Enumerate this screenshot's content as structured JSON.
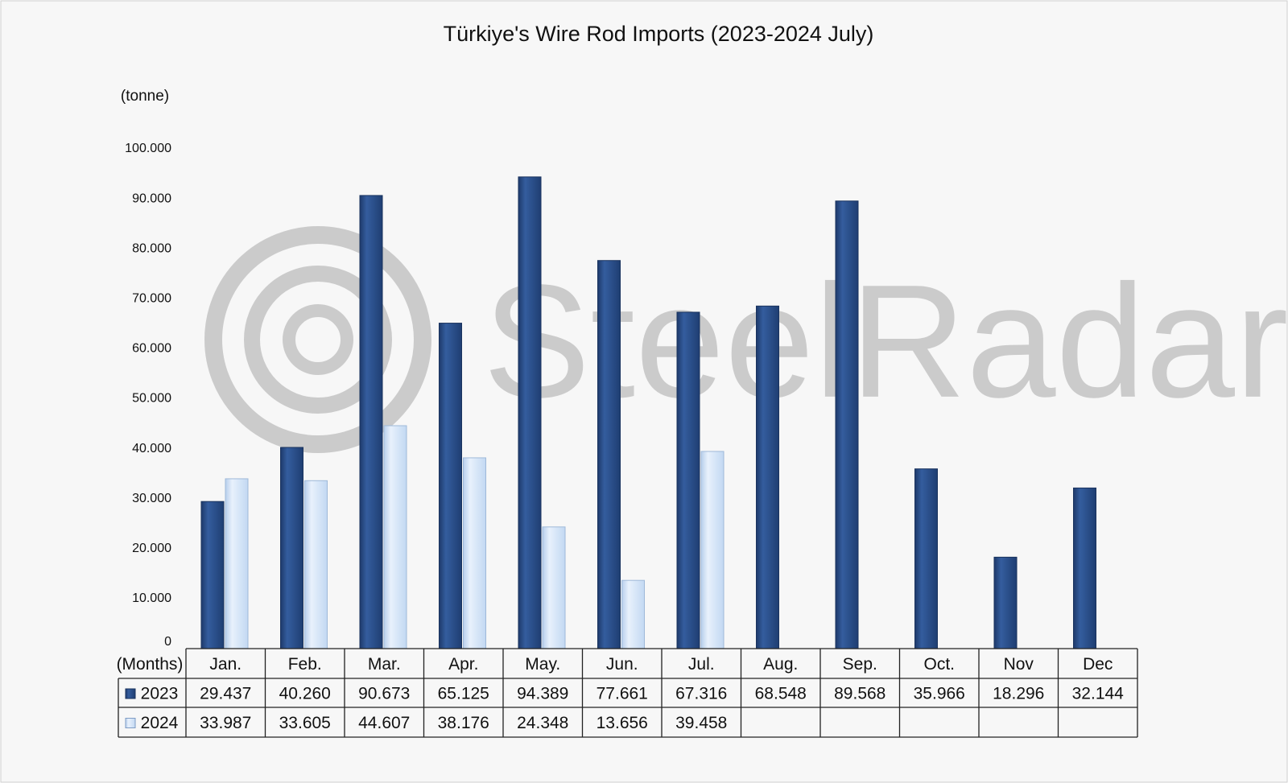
{
  "chart_data": {
    "type": "bar",
    "title": "Türkiye's Wire Rod Imports (2023-2024 July)",
    "y_label": "(tonne)",
    "x_label": "(Months)",
    "watermark": "SteelRadar",
    "categories": [
      "Jan.",
      "Feb.",
      "Mar.",
      "Apr.",
      "May.",
      "Jun.",
      "Jul.",
      "Aug.",
      "Sep.",
      "Oct.",
      "Nov",
      "Dec"
    ],
    "series": [
      {
        "name": "2023",
        "color": "#2c4f8a",
        "values": [
          29437,
          40260,
          90673,
          65125,
          94389,
          77661,
          67316,
          68548,
          89568,
          35966,
          18296,
          32144
        ],
        "value_labels": [
          "29.437",
          "40.260",
          "90.673",
          "65.125",
          "94.389",
          "77.661",
          "67.316",
          "68.548",
          "89.568",
          "35.966",
          "18.296",
          "32.144"
        ]
      },
      {
        "name": "2024",
        "color": "#d3e4f8",
        "values": [
          33987,
          33605,
          44607,
          38176,
          24348,
          13656,
          39458,
          null,
          null,
          null,
          null,
          null
        ],
        "value_labels": [
          "33.987",
          "33.605",
          "44.607",
          "38.176",
          "24.348",
          "13.656",
          "39.458",
          null,
          null,
          null,
          null,
          null
        ]
      }
    ],
    "ylim": [
      0,
      100000
    ],
    "yticks": [
      0,
      {
        "value": 10000,
        "label": "10.000"
      },
      {
        "value": 20000,
        "label": "20.000"
      },
      {
        "value": 30000,
        "label": "30.000"
      },
      {
        "value": 40000,
        "label": "40.000"
      },
      {
        "value": 50000,
        "label": "50.000"
      },
      {
        "value": 60000,
        "label": "60.000"
      },
      {
        "value": 70000,
        "label": "70.000"
      },
      {
        "value": 80000,
        "label": "80.000"
      },
      {
        "value": 90000,
        "label": "90.000"
      },
      {
        "value": 100000,
        "label": "100.000"
      }
    ],
    "grid": false,
    "legend": "table"
  }
}
